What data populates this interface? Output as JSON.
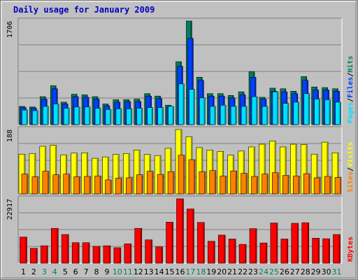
{
  "colors": {
    "background": "#c0c0c0",
    "panel": "#c0c0c0",
    "title": "#0000c0",
    "hits": "#00805c",
    "files": "#0040ff",
    "pages": "#00e0ff",
    "visits": "#ffff00",
    "sites": "#ff8000",
    "kbytes": "#ff0000",
    "weekend_label": "#00805c",
    "weekday_label": "#000000"
  },
  "chart_data": {
    "type": "bar",
    "title": "Daily usage for January 2009",
    "x_labels": [
      "1",
      "2",
      "3",
      "4",
      "5",
      "6",
      "7",
      "8",
      "9",
      "10",
      "11",
      "12",
      "13",
      "14",
      "15",
      "16",
      "17",
      "18",
      "19",
      "20",
      "21",
      "22",
      "23",
      "24",
      "25",
      "26",
      "27",
      "28",
      "29",
      "30",
      "31"
    ],
    "weekend_days": [
      3,
      4,
      10,
      11,
      17,
      18,
      24,
      25,
      31
    ],
    "panels": [
      {
        "name": "hits-files-pages",
        "max_label": "1706",
        "ylim": [
          0,
          1706
        ],
        "right_legend": [
          "Pages",
          "/",
          "Files",
          "/",
          "Hits"
        ],
        "series": [
          {
            "name": "Hits",
            "color_key": "hits",
            "values": [
              300,
              290,
              460,
              640,
              370,
              500,
              490,
              460,
              340,
              410,
              410,
              420,
              510,
              470,
              320,
              1036,
              1706,
              780,
              510,
              510,
              480,
              540,
              870,
              450,
              600,
              590,
              550,
              790,
              620,
              610,
              590
            ]
          },
          {
            "name": "Files",
            "color_key": "files",
            "values": [
              280,
              270,
              420,
              590,
              340,
              460,
              450,
              420,
              310,
              370,
              380,
              380,
              470,
              430,
              290,
              960,
              1420,
              730,
              470,
              470,
              440,
              490,
              780,
              420,
              550,
              540,
              510,
              730,
              570,
              570,
              550
            ]
          },
          {
            "name": "Pages",
            "color_key": "pages",
            "values": [
              240,
              230,
              300,
              340,
              270,
              290,
              290,
              270,
              250,
              260,
              260,
              270,
              280,
              280,
              300,
              670,
              580,
              440,
              300,
              320,
              300,
              300,
              460,
              300,
              540,
              350,
              370,
              510,
              420,
              410,
              370
            ]
          }
        ]
      },
      {
        "name": "visits-sites",
        "max_label": "188",
        "ylim": [
          0,
          188
        ],
        "right_legend": [
          "Sites",
          "/",
          "Visits"
        ],
        "series": [
          {
            "name": "Visits",
            "color_key": "visits",
            "values": [
              116,
              118,
              139,
              142,
              114,
              119,
              120,
              104,
              108,
              115,
              118,
              128,
              115,
              112,
              133,
              188,
              167,
              135,
              128,
              124,
              113,
              125,
              137,
              145,
              154,
              137,
              145,
              144,
              116,
              151,
              120
            ]
          },
          {
            "name": "Sites",
            "color_key": "sites",
            "values": [
              58,
              50,
              66,
              56,
              58,
              50,
              51,
              52,
              41,
              46,
              47,
              56,
              66,
              57,
              65,
              113,
              100,
              65,
              68,
              52,
              67,
              60,
              51,
              58,
              62,
              54,
              52,
              59,
              47,
              51,
              48
            ]
          }
        ]
      },
      {
        "name": "kbytes",
        "max_label": "22917",
        "ylim": [
          0,
          22917
        ],
        "right_legend": [
          "KBytes"
        ],
        "series": [
          {
            "name": "KBytes",
            "color_key": "kbytes",
            "values": [
              9300,
              5300,
              6200,
              12400,
              10200,
              7300,
              7300,
              6000,
              6200,
              5500,
              6900,
              12400,
              8300,
              5800,
              14600,
              22917,
              19300,
              14500,
              7800,
              10000,
              8600,
              6700,
              12300,
              7200,
              14300,
              8600,
              14200,
              14400,
              8900,
              8700,
              10200
            ]
          }
        ]
      }
    ]
  }
}
